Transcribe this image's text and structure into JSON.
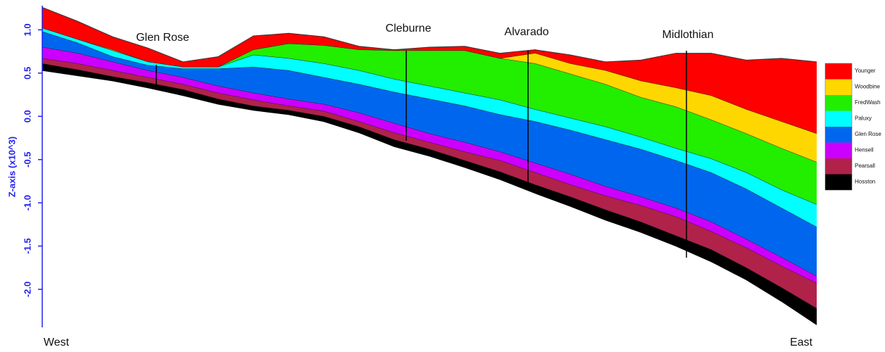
{
  "chart_data": {
    "type": "layers",
    "y_label": "Z-axis (x10^3)",
    "ylim": [
      -2.44,
      1.28
    ],
    "yticks": [
      {
        "value": 1,
        "label": "1.0"
      },
      0.5,
      {
        "value": 0,
        "label": "0.0"
      },
      -0.5,
      {
        "value": -1,
        "label": "-1.0"
      },
      -1.5,
      {
        "value": -2,
        "label": "-2.0"
      }
    ],
    "x_start": "West",
    "x_end": "East",
    "annotations": [
      "Glen Rose",
      "Cleburne",
      "Alvarado",
      "Midlothian"
    ],
    "series": [
      {
        "name": "Younger",
        "color": "#ff0000",
        "values": [
          1.26,
          1.1,
          0.92,
          0.79,
          0.63,
          0.69,
          0.93,
          0.96,
          0.92,
          0.81,
          0.77,
          0.8,
          0.81,
          0.73,
          0.77,
          0.71,
          0.63,
          0.65,
          0.73,
          0.73,
          0.65,
          0.67,
          0.63
        ]
      },
      {
        "name": "Woodbine",
        "color": "#ffd700",
        "values": [
          1.02,
          0.89,
          0.77,
          0.63,
          0.57,
          0.57,
          0.77,
          0.84,
          0.82,
          0.77,
          0.76,
          0.76,
          0.76,
          0.67,
          0.73,
          0.61,
          0.53,
          0.41,
          0.33,
          0.24,
          0.08,
          -0.06,
          -0.2
        ]
      },
      {
        "name": "FredWash",
        "color": "#22ee00",
        "values": [
          1.02,
          0.89,
          0.76,
          0.63,
          0.57,
          0.57,
          0.77,
          0.84,
          0.82,
          0.77,
          0.76,
          0.76,
          0.76,
          0.67,
          0.61,
          0.49,
          0.37,
          0.22,
          0.11,
          -0.04,
          -0.2,
          -0.37,
          -0.53
        ]
      },
      {
        "name": "Paluxy",
        "color": "#00ffff",
        "values": [
          1.02,
          0.89,
          0.76,
          0.63,
          0.57,
          0.57,
          0.71,
          0.67,
          0.61,
          0.53,
          0.43,
          0.35,
          0.27,
          0.19,
          0.08,
          -0.02,
          -0.12,
          -0.24,
          -0.37,
          -0.49,
          -0.65,
          -0.85,
          -1.02
        ]
      },
      {
        "name": "Glen Rose",
        "color": "#0066ee",
        "values": [
          0.98,
          0.85,
          0.69,
          0.59,
          0.55,
          0.55,
          0.57,
          0.53,
          0.45,
          0.37,
          0.28,
          0.2,
          0.12,
          0.02,
          -0.06,
          -0.16,
          -0.27,
          -0.38,
          -0.51,
          -0.65,
          -0.84,
          -1.06,
          -1.28
        ]
      },
      {
        "name": "Hensell",
        "color": "#cc00ff",
        "values": [
          0.8,
          0.73,
          0.63,
          0.53,
          0.45,
          0.35,
          0.27,
          0.2,
          0.14,
          0.04,
          -0.08,
          -0.2,
          -0.3,
          -0.41,
          -0.54,
          -0.67,
          -0.81,
          -0.93,
          -1.06,
          -1.22,
          -1.42,
          -1.63,
          -1.85
        ]
      },
      {
        "name": "Pearsall",
        "color": "#b0224a",
        "values": [
          0.67,
          0.61,
          0.53,
          0.45,
          0.37,
          0.27,
          0.19,
          0.12,
          0.06,
          -0.06,
          -0.19,
          -0.3,
          -0.41,
          -0.51,
          -0.65,
          -0.79,
          -0.92,
          -1.03,
          -1.16,
          -1.33,
          -1.52,
          -1.73,
          -1.93
        ]
      },
      {
        "name": "Hosston",
        "color": "#000000",
        "values": [
          0.61,
          0.54,
          0.46,
          0.39,
          0.31,
          0.2,
          0.12,
          0.07,
          0.0,
          -0.12,
          -0.27,
          -0.38,
          -0.51,
          -0.64,
          -0.79,
          -0.93,
          -1.08,
          -1.22,
          -1.38,
          -1.54,
          -1.75,
          -1.98,
          -2.22
        ]
      }
    ],
    "bottom": [
      0.53,
      0.47,
      0.41,
      0.33,
      0.24,
      0.14,
      0.07,
      0.02,
      -0.06,
      -0.19,
      -0.35,
      -0.46,
      -0.59,
      -0.73,
      -0.89,
      -1.04,
      -1.2,
      -1.34,
      -1.5,
      -1.68,
      -1.89,
      -2.14,
      -2.41
    ]
  }
}
